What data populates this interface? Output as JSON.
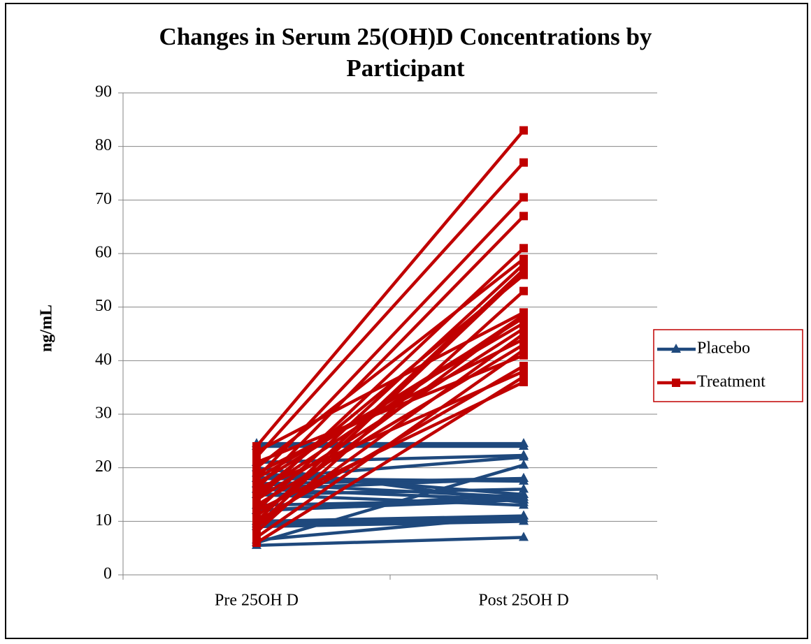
{
  "chart_data": {
    "type": "line",
    "title_lines": [
      "Changes in Serum 25(OH)D Concentrations by",
      "Participant"
    ],
    "y_label": "ng/mL",
    "categories": [
      "Pre 25OH D",
      "Post 25OH D"
    ],
    "ylim": [
      0,
      90
    ],
    "yticks": [
      0,
      10,
      20,
      30,
      40,
      50,
      60,
      70,
      80,
      90
    ],
    "grid": true,
    "legend": "right",
    "series": [
      {
        "name": "Placebo",
        "color": "#1f497d",
        "marker": "triangle",
        "lines": [
          [
            24.5,
            24.5
          ],
          [
            24,
            24
          ],
          [
            21,
            22.3
          ],
          [
            18,
            22
          ],
          [
            6,
            20.5
          ],
          [
            17,
            18
          ],
          [
            18,
            17.5
          ],
          [
            16,
            18
          ],
          [
            15,
            16
          ],
          [
            19,
            15
          ],
          [
            17,
            14.5
          ],
          [
            12,
            14
          ],
          [
            20,
            13.5
          ],
          [
            15,
            13
          ],
          [
            12,
            15
          ],
          [
            10,
            11
          ],
          [
            9.5,
            10.5
          ],
          [
            9,
            10
          ],
          [
            6.5,
            11
          ],
          [
            5.5,
            7
          ],
          [
            16,
            14
          ],
          [
            13,
            14
          ]
        ]
      },
      {
        "name": "Treatment",
        "color": "#c00000",
        "marker": "square",
        "lines": [
          [
            24,
            83
          ],
          [
            22,
            77
          ],
          [
            18,
            70.5
          ],
          [
            16,
            67
          ],
          [
            14,
            61
          ],
          [
            20,
            59
          ],
          [
            12,
            58
          ],
          [
            10,
            57
          ],
          [
            15,
            56
          ],
          [
            8,
            53
          ],
          [
            23,
            49
          ],
          [
            11,
            48.5
          ],
          [
            17,
            48
          ],
          [
            9,
            45
          ],
          [
            19,
            44
          ],
          [
            13,
            43
          ],
          [
            7,
            42
          ],
          [
            21,
            41
          ],
          [
            10,
            39
          ],
          [
            16,
            38
          ],
          [
            6,
            37
          ],
          [
            12,
            36
          ],
          [
            18,
            47
          ],
          [
            14,
            46
          ],
          [
            9,
            56.5
          ],
          [
            15,
            48.5
          ]
        ]
      }
    ]
  }
}
